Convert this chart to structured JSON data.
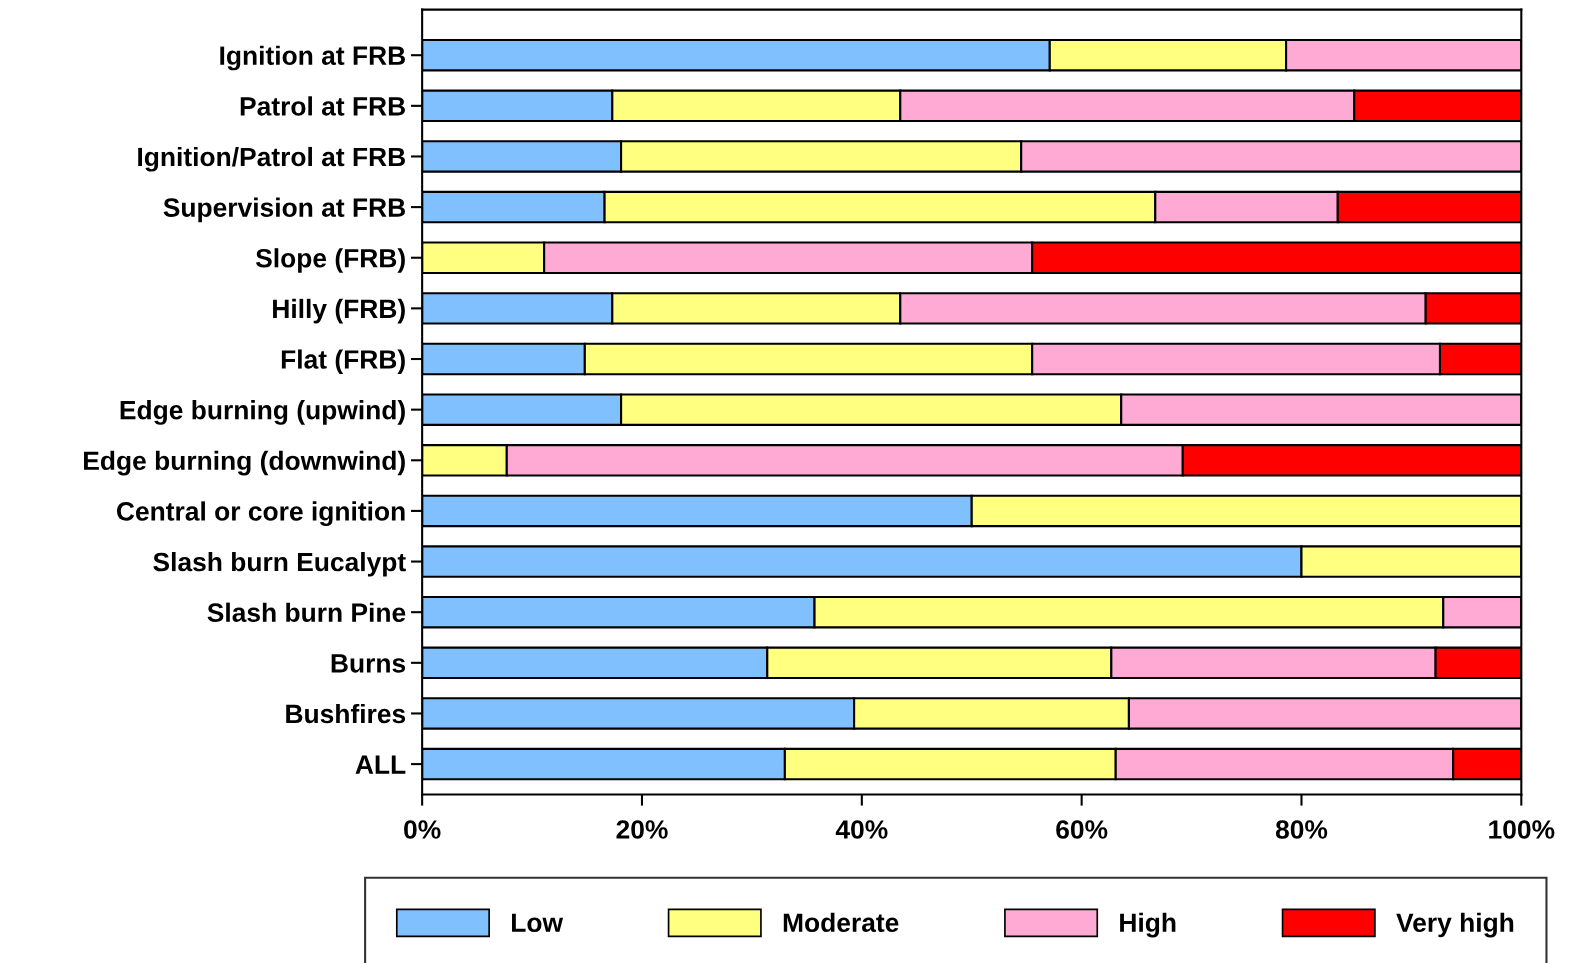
{
  "chart_data": {
    "type": "bar",
    "orientation": "horizontal",
    "stacked": true,
    "categories": [
      "Ignition at FRB",
      "Patrol at FRB",
      "Ignition/Patrol at FRB",
      "Supervision at FRB",
      "Slope (FRB)",
      "Hilly (FRB)",
      "Flat (FRB)",
      "Edge burning (upwind)",
      "Edge burning (downwind)",
      "Central or core ignition",
      "Slash burn Eucalypt",
      "Slash burn Pine",
      "Burns",
      "Bushfires",
      "ALL"
    ],
    "series": [
      {
        "name": "Low",
        "color": "#80c0ff",
        "values": [
          57.1,
          17.3,
          18.1,
          16.6,
          null,
          17.3,
          14.8,
          18.1,
          null,
          50.0,
          80.0,
          35.7,
          31.4,
          39.3,
          33.0
        ]
      },
      {
        "name": "Moderate",
        "color": "#ffff80",
        "values": [
          21.5,
          26.2,
          36.4,
          50.1,
          11.1,
          26.2,
          40.7,
          45.5,
          7.7,
          50.0,
          20.0,
          57.2,
          31.3,
          25.0,
          30.1
        ]
      },
      {
        "name": "High",
        "color": "#ffaad5",
        "values": [
          21.4,
          41.3,
          45.5,
          16.6,
          44.4,
          47.8,
          37.1,
          36.4,
          61.5,
          null,
          null,
          7.1,
          29.5,
          35.7,
          30.7
        ]
      },
      {
        "name": "Very high",
        "color": "#ff0000",
        "values": [
          null,
          15.2,
          null,
          16.7,
          44.5,
          8.7,
          7.4,
          null,
          30.8,
          null,
          null,
          null,
          7.8,
          null,
          6.2
        ]
      }
    ],
    "xlim": [
      0,
      100
    ],
    "xticks": [
      {
        "value": 0,
        "label": "0%"
      },
      {
        "value": 20,
        "label": "20%"
      },
      {
        "value": 40,
        "label": "40%"
      },
      {
        "value": 60,
        "label": "60%"
      },
      {
        "value": 80,
        "label": "80%"
      },
      {
        "value": 100,
        "label": "100%"
      }
    ],
    "grid": false,
    "legend": "bottom"
  }
}
